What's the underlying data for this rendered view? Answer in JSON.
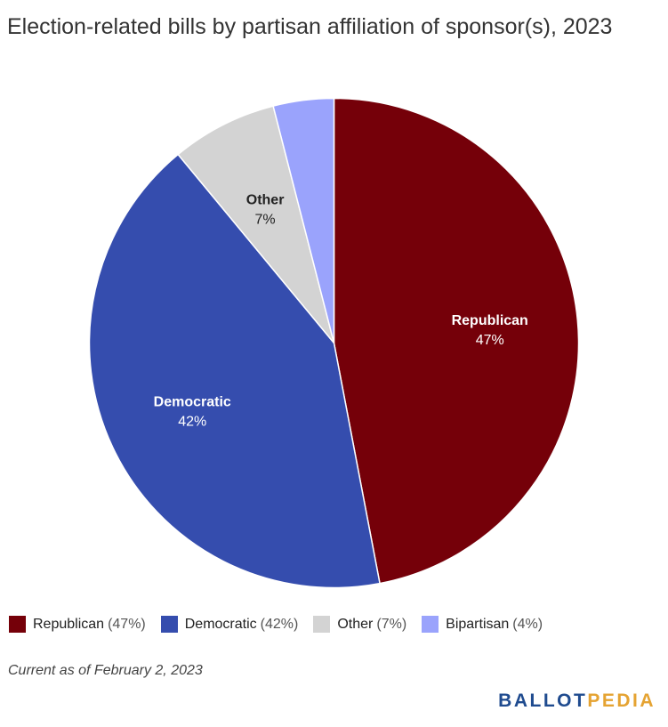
{
  "chart_data": {
    "type": "pie",
    "title": "Election-related bills by partisan affiliation of sponsor(s), 2023",
    "start_angle": "12 o'clock, clockwise",
    "slices": [
      {
        "label": "Republican",
        "value": 47,
        "display": "47%",
        "legend_pct": "(47%)",
        "color": "#750009",
        "label_color": "#ffffff",
        "show_label": true
      },
      {
        "label": "Democratic",
        "value": 42,
        "display": "42%",
        "legend_pct": "(42%)",
        "color": "#354dae",
        "label_color": "#ffffff",
        "show_label": true
      },
      {
        "label": "Other",
        "value": 7,
        "display": "7%",
        "legend_pct": "(7%)",
        "color": "#d3d3d3",
        "label_color": "#222222",
        "show_label": true
      },
      {
        "label": "Bipartisan",
        "value": 4,
        "display": "4%",
        "legend_pct": "(4%)",
        "color": "#9aa3fc",
        "label_color": "#222222",
        "show_label": false
      }
    ],
    "legend_position": "bottom-left"
  },
  "footnote": "Current as of February 2, 2023",
  "brand": {
    "part1": "BALLOT",
    "part2": "PEDIA"
  }
}
